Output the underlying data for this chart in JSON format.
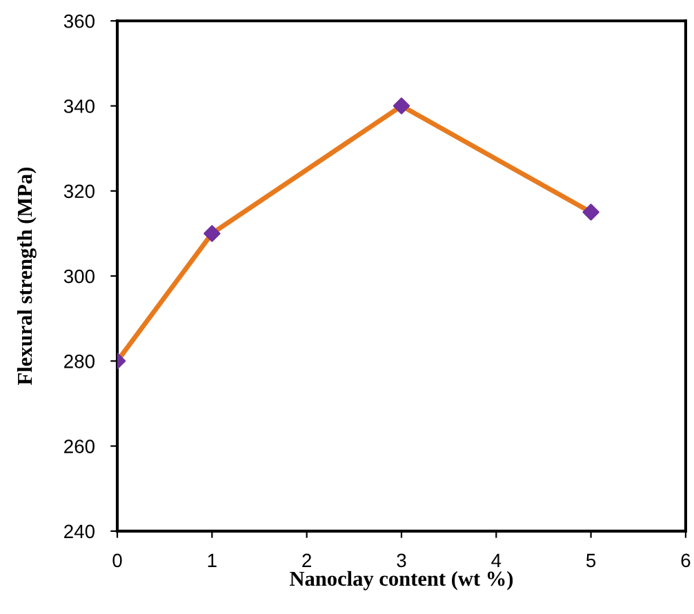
{
  "chart_data": {
    "type": "line",
    "xlabel": "Nanoclay content (wt %)",
    "ylabel": "Flexural strength (MPa)",
    "x": [
      0,
      1,
      3,
      5
    ],
    "series": [
      {
        "color": "#e87a1e",
        "colors": [
          "#7030a0",
          "#7030a0",
          "#7030a0",
          "#7030a0"
        ],
        "values": [
          280,
          310,
          340,
          315
        ]
      }
    ],
    "xlim": [
      0,
      6
    ],
    "xticks": [
      0,
      1,
      2,
      3,
      4,
      5,
      6
    ],
    "ylim": [
      240,
      360
    ],
    "yticks": [
      240,
      260,
      280,
      300,
      320,
      340,
      360
    ],
    "marker": "diamond",
    "line_style": "solid",
    "grid": false
  }
}
